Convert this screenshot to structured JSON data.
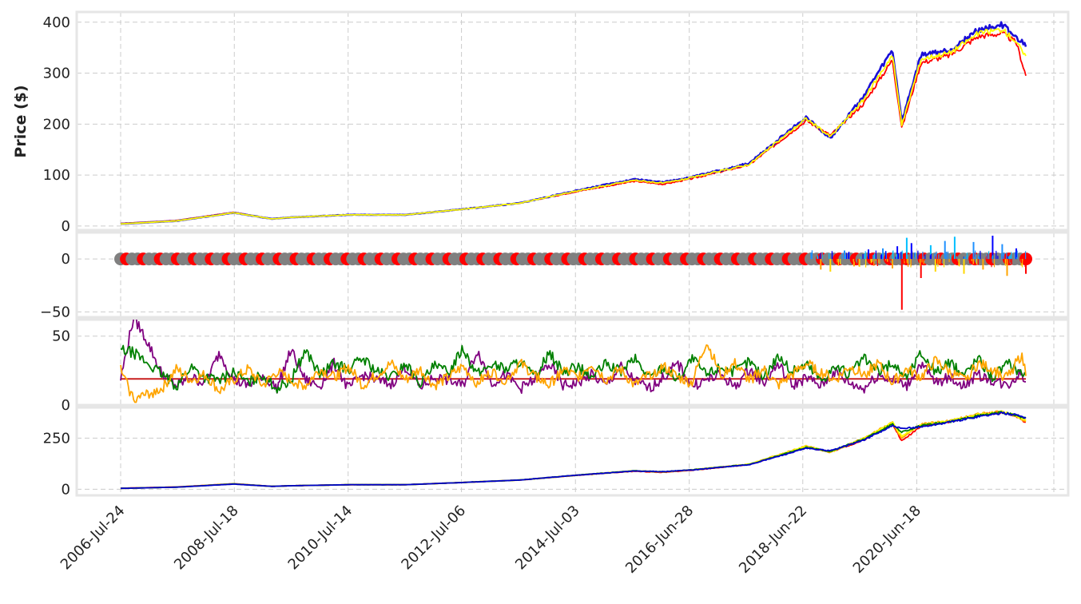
{
  "chart_data": [
    {
      "type": "line",
      "panel": "price",
      "title": "",
      "xlabel": "",
      "ylabel": "Price ($)",
      "ylim": [
        -8,
        420
      ],
      "yticks": [
        "0",
        "100",
        "200",
        "300",
        "400"
      ],
      "ytick_values": [
        0,
        100,
        200,
        300,
        400
      ],
      "grid": true,
      "x": [
        "2006-07",
        "2007-07",
        "2008-07",
        "2009-03",
        "2009-07",
        "2010-07",
        "2011-07",
        "2012-07",
        "2013-07",
        "2014-07",
        "2015-07",
        "2016-01",
        "2016-07",
        "2017-07",
        "2018-07",
        "2018-12",
        "2019-07",
        "2020-01",
        "2020-03",
        "2020-07",
        "2021-01",
        "2021-07",
        "2021-12",
        "2022-03",
        "2022-05"
      ],
      "series": [
        {
          "color": "#ff0000",
          "values": [
            5,
            11,
            27,
            14,
            17,
            22,
            22,
            33,
            45,
            68,
            88,
            82,
            93,
            120,
            207,
            178,
            240,
            326,
            192,
            320,
            335,
            372,
            378,
            360,
            295
          ]
        },
        {
          "color": "#1a0fd8",
          "values": [
            4,
            10,
            26,
            14,
            17,
            22,
            22,
            33,
            45,
            70,
            92,
            86,
            96,
            123,
            214,
            172,
            255,
            345,
            205,
            335,
            345,
            385,
            395,
            368,
            355
          ]
        },
        {
          "color": "#ffff00",
          "values": [
            4,
            10,
            26,
            14,
            17,
            22,
            22,
            33,
            45,
            69,
            90,
            84,
            95,
            121,
            211,
            175,
            248,
            336,
            198,
            328,
            340,
            378,
            386,
            362,
            330
          ]
        }
      ]
    },
    {
      "type": "bar",
      "panel": "change",
      "ylim": [
        -55,
        25
      ],
      "yticks": [
        "−50",
        "0"
      ],
      "ytick_values": [
        -50,
        0
      ],
      "grid": true,
      "marker_color": "#808080",
      "marker_alt_color": "#ff0000",
      "up_colors": [
        "#1e90ff",
        "#00bfff",
        "#0000ff"
      ],
      "down_colors": [
        "#ff0000",
        "#ffa500",
        "#ffd700"
      ],
      "x": [
        "2018-08",
        "2018-10",
        "2018-12",
        "2019-03",
        "2019-05",
        "2019-08",
        "2019-11",
        "2020-01",
        "2020-02",
        "2020-03",
        "2020-04",
        "2020-05",
        "2020-07",
        "2020-09",
        "2020-10",
        "2020-12",
        "2021-02",
        "2021-04",
        "2021-06",
        "2021-08",
        "2021-10",
        "2021-12",
        "2022-01",
        "2022-03",
        "2022-05"
      ],
      "values": [
        6,
        -10,
        -12,
        8,
        -7,
        9,
        10,
        -9,
        12,
        -48,
        20,
        15,
        -18,
        13,
        -12,
        17,
        21,
        -14,
        16,
        -10,
        22,
        14,
        -16,
        10,
        -14
      ]
    },
    {
      "type": "line",
      "panel": "oscillator",
      "ylim": [
        0,
        62
      ],
      "yticks": [
        "0",
        "50"
      ],
      "ytick_values": [
        0,
        50
      ],
      "grid": true,
      "reference_value": 19,
      "reference_color": "#c81e1e",
      "x": [
        "2006-07",
        "2006-10",
        "2007-01",
        "2007-04",
        "2007-07",
        "2007-10",
        "2008-01",
        "2008-04",
        "2008-07",
        "2008-10",
        "2009-01",
        "2009-04",
        "2009-07",
        "2009-10",
        "2010-01",
        "2010-04",
        "2010-07",
        "2010-10",
        "2011-01",
        "2011-04",
        "2011-07",
        "2011-10",
        "2012-01",
        "2012-04",
        "2012-07",
        "2012-10",
        "2013-01",
        "2013-04",
        "2013-07",
        "2013-10",
        "2014-01",
        "2014-04",
        "2014-07",
        "2014-10",
        "2015-01",
        "2015-04",
        "2015-07",
        "2015-10",
        "2016-01",
        "2016-04",
        "2016-07",
        "2016-10",
        "2017-01",
        "2017-04",
        "2017-07",
        "2017-10",
        "2018-01",
        "2018-04",
        "2018-07",
        "2018-10",
        "2019-01",
        "2019-04",
        "2019-07",
        "2019-10",
        "2020-01",
        "2020-04",
        "2020-07",
        "2020-10",
        "2021-01",
        "2021-04",
        "2021-07",
        "2021-10",
        "2022-01",
        "2022-04",
        "2022-05"
      ],
      "series": [
        {
          "color": "#800080",
          "values": [
            14,
            64,
            45,
            22,
            14,
            20,
            16,
            38,
            18,
            14,
            22,
            12,
            40,
            18,
            14,
            30,
            12,
            22,
            18,
            15,
            28,
            13,
            20,
            18,
            14,
            40,
            16,
            22,
            12,
            18,
            30,
            14,
            16,
            22,
            14,
            28,
            18,
            12,
            20,
            30,
            14,
            18,
            22,
            13,
            26,
            16,
            30,
            14,
            20,
            14,
            24,
            16,
            12,
            22,
            18,
            14,
            30,
            16,
            20,
            14,
            22,
            18,
            14,
            24,
            15
          ]
        },
        {
          "color": "#008000",
          "values": [
            40,
            38,
            30,
            22,
            14,
            28,
            20,
            18,
            24,
            16,
            22,
            12,
            18,
            40,
            22,
            30,
            26,
            34,
            24,
            20,
            30,
            16,
            28,
            24,
            42,
            22,
            30,
            26,
            32,
            20,
            38,
            24,
            28,
            20,
            30,
            24,
            34,
            20,
            28,
            18,
            34,
            22,
            28,
            24,
            32,
            20,
            36,
            24,
            30,
            18,
            28,
            22,
            34,
            24,
            30,
            20,
            38,
            24,
            30,
            22,
            34,
            20,
            30,
            24,
            22
          ]
        },
        {
          "color": "#ffa500",
          "values": [
            28,
            4,
            8,
            12,
            26,
            18,
            22,
            10,
            18,
            26,
            14,
            24,
            18,
            14,
            26,
            20,
            28,
            14,
            22,
            30,
            18,
            26,
            14,
            20,
            28,
            16,
            24,
            18,
            30,
            22,
            14,
            26,
            20,
            30,
            18,
            26,
            14,
            22,
            28,
            20,
            16,
            46,
            22,
            30,
            18,
            26,
            14,
            22,
            30,
            24,
            18,
            28,
            22,
            30,
            16,
            26,
            20,
            32,
            24,
            18,
            30,
            26,
            20,
            36,
            24
          ]
        }
      ]
    },
    {
      "type": "line",
      "panel": "smoothed",
      "ylim": [
        -30,
        400
      ],
      "yticks": [
        "0",
        "250"
      ],
      "ytick_values": [
        0,
        250
      ],
      "grid": true,
      "x": [
        "2006-07",
        "2007-07",
        "2008-07",
        "2009-03",
        "2009-07",
        "2010-07",
        "2011-07",
        "2012-07",
        "2013-07",
        "2014-07",
        "2015-07",
        "2016-01",
        "2016-07",
        "2017-07",
        "2018-07",
        "2018-12",
        "2019-07",
        "2020-01",
        "2020-03",
        "2020-07",
        "2021-01",
        "2021-07",
        "2021-12",
        "2022-03",
        "2022-05"
      ],
      "series": [
        {
          "color": "#ff0000",
          "values": [
            5,
            11,
            27,
            14,
            17,
            22,
            22,
            33,
            45,
            68,
            88,
            82,
            93,
            120,
            207,
            182,
            240,
            320,
            235,
            310,
            330,
            365,
            375,
            358,
            325
          ]
        },
        {
          "color": "#ffa500",
          "values": [
            4,
            11,
            26,
            14,
            17,
            22,
            22,
            33,
            45,
            69,
            90,
            84,
            95,
            122,
            212,
            180,
            250,
            328,
            248,
            318,
            334,
            368,
            380,
            356,
            330
          ]
        },
        {
          "color": "#ffff00",
          "values": [
            4,
            10,
            26,
            14,
            17,
            22,
            22,
            33,
            45,
            69,
            90,
            85,
            95,
            122,
            210,
            182,
            248,
            326,
            258,
            316,
            334,
            366,
            378,
            360,
            338
          ]
        },
        {
          "color": "#008000",
          "values": [
            4,
            10,
            26,
            14,
            17,
            22,
            22,
            33,
            45,
            69,
            90,
            85,
            95,
            121,
            205,
            185,
            245,
            318,
            280,
            310,
            330,
            360,
            376,
            362,
            345
          ]
        },
        {
          "color": "#0000cd",
          "values": [
            4,
            10,
            25,
            14,
            17,
            22,
            22,
            33,
            45,
            69,
            89,
            86,
            94,
            120,
            200,
            188,
            240,
            310,
            295,
            305,
            328,
            356,
            372,
            364,
            350
          ]
        }
      ]
    }
  ],
  "x_axis": {
    "start": "2006-07",
    "end": "2022-05",
    "tick_labels": [
      "2006-Jul-24",
      "2008-Jul-18",
      "2010-Jul-14",
      "2012-Jul-06",
      "2014-Jul-03",
      "2016-Jun-28",
      "2018-Jun-22",
      "2020-Jun-18"
    ],
    "tick_dates": [
      "2006-07-24",
      "2008-07-18",
      "2010-07-14",
      "2012-07-06",
      "2014-07-03",
      "2016-06-28",
      "2018-06-22",
      "2020-06-18"
    ]
  }
}
